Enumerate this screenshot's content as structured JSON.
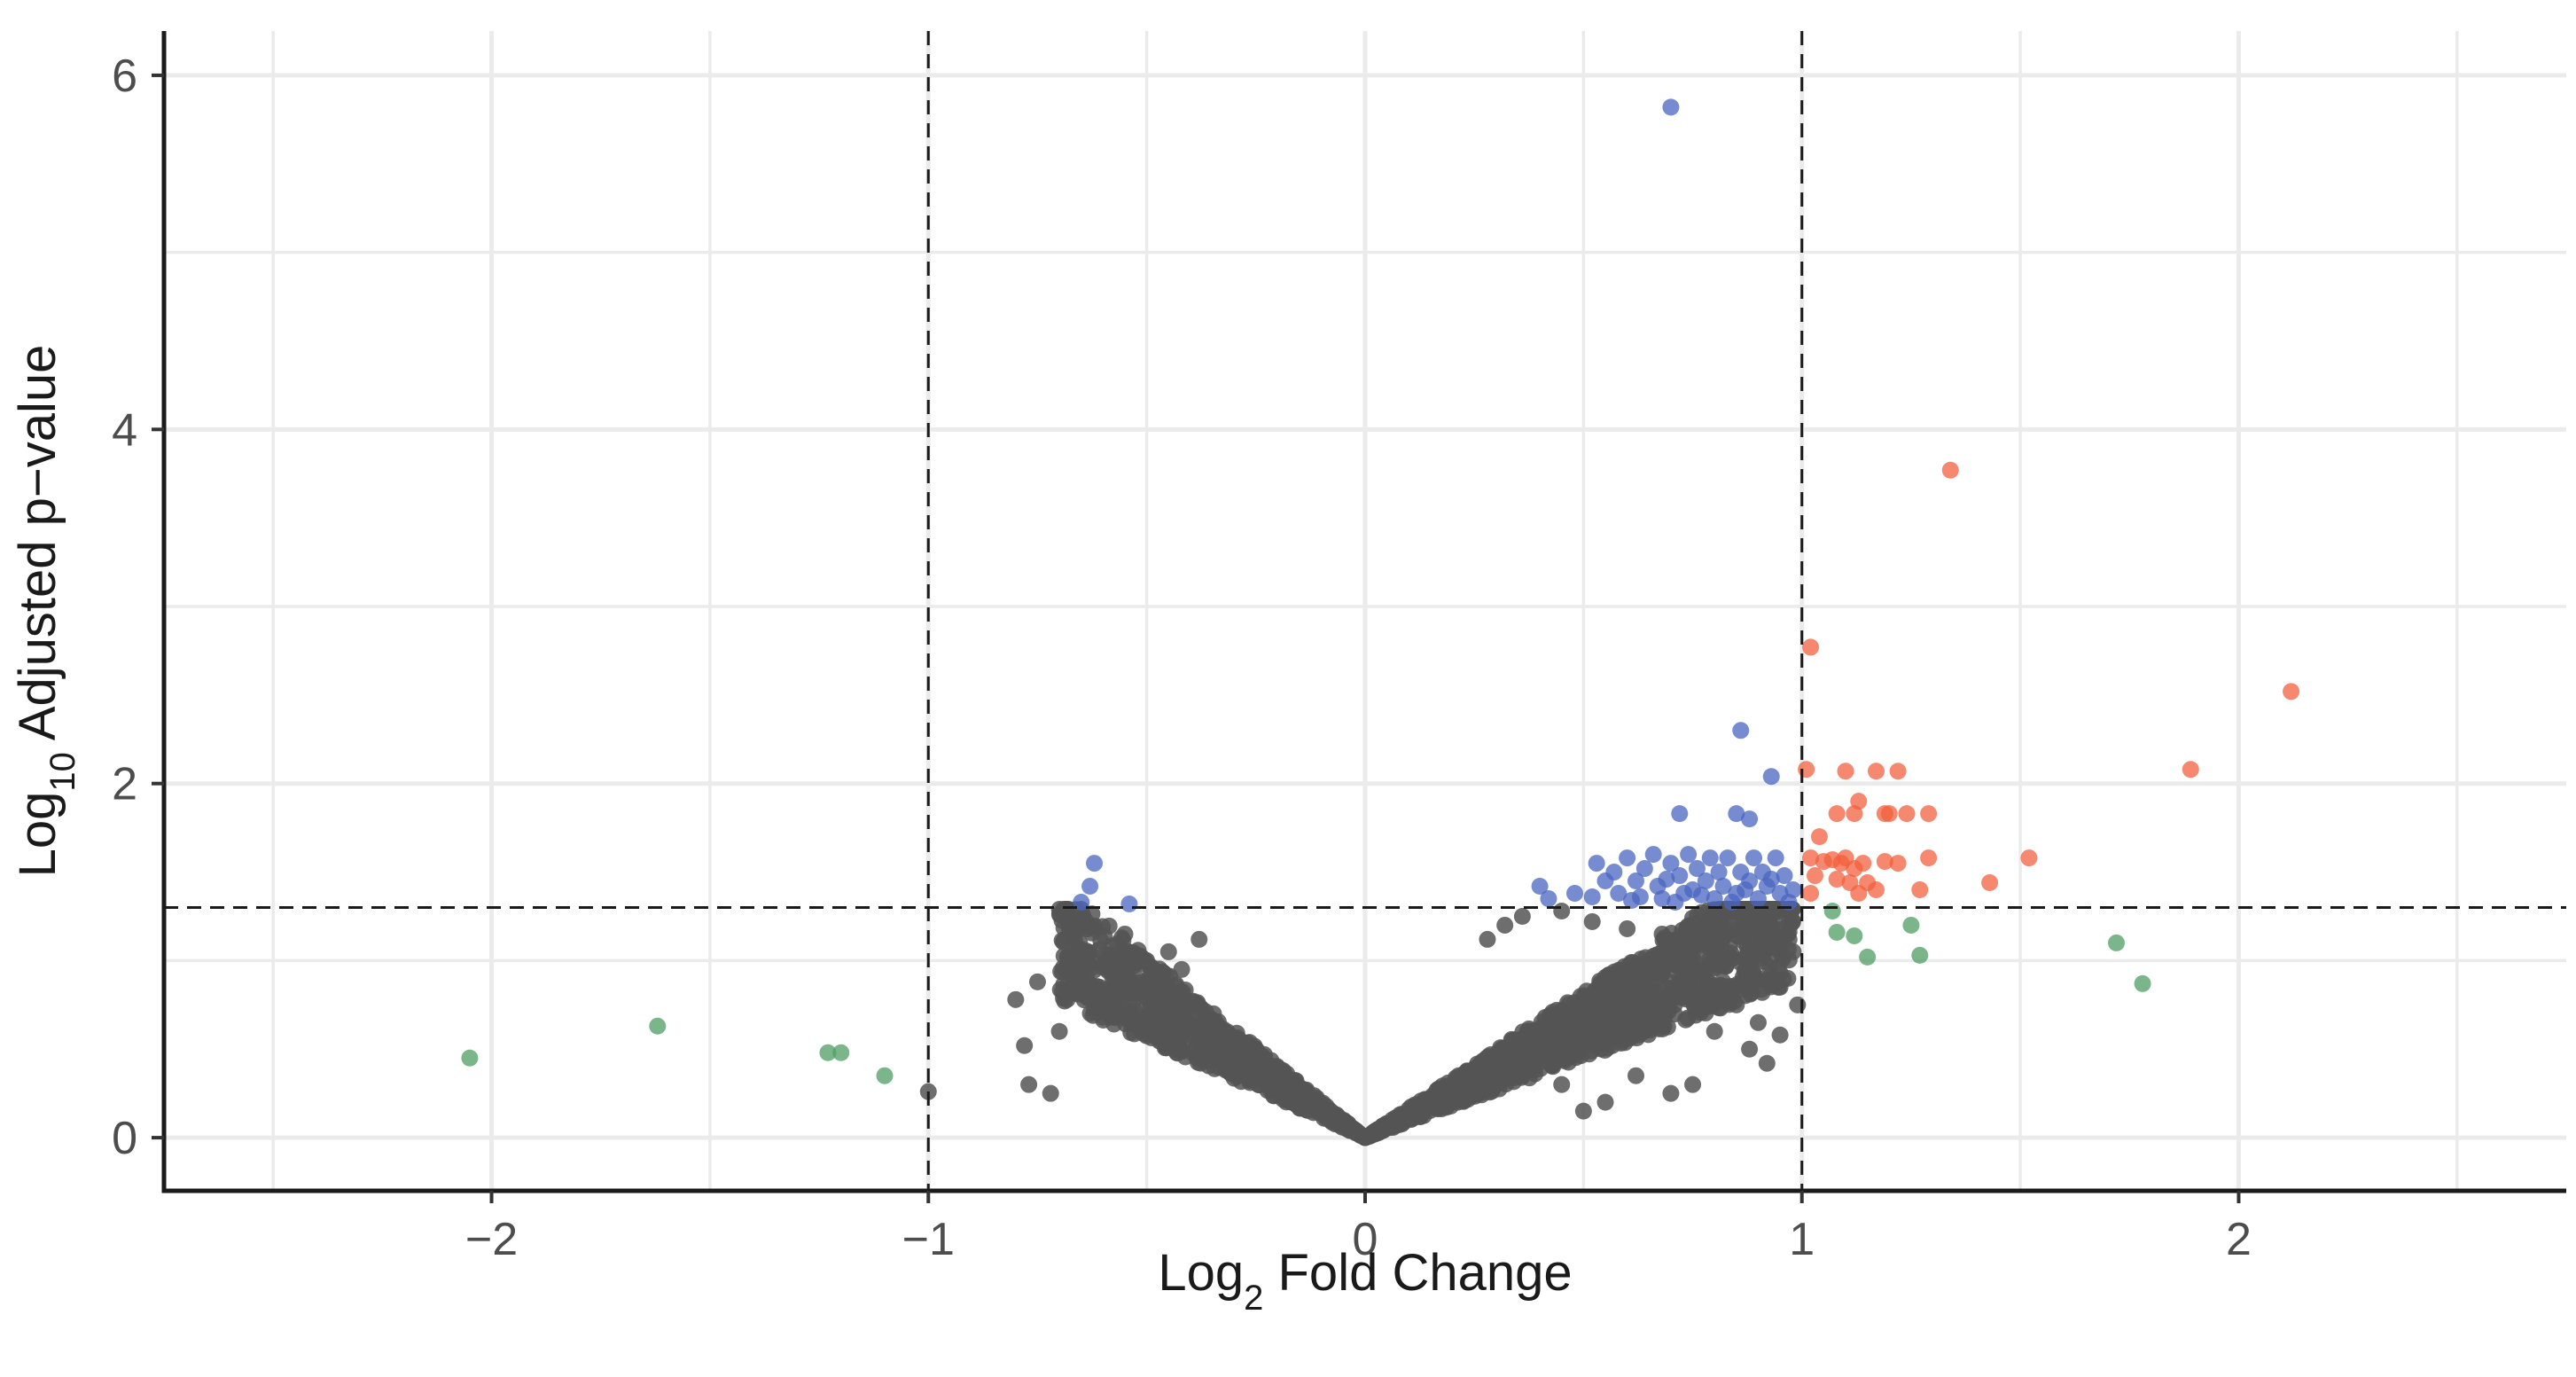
{
  "chart_data": {
    "type": "scatter",
    "title": "",
    "xlabel": {
      "prefix": "Log",
      "subscript": "2",
      "suffix": " Fold Change"
    },
    "ylabel": {
      "prefix": "Log",
      "subscript": "10",
      "suffix": " Adjusted p−value"
    },
    "xlim": [
      -2.75,
      2.75
    ],
    "ylim": [
      -0.3,
      6.25
    ],
    "x_ticks": [
      -2,
      -1,
      0,
      1,
      2
    ],
    "x_tick_labels": [
      "−2",
      "−1",
      "0",
      "1",
      "2"
    ],
    "y_ticks": [
      0,
      2,
      4,
      6
    ],
    "y_tick_labels": [
      "0",
      "2",
      "4",
      "6"
    ],
    "grid": true,
    "legend": "none",
    "threshold_lines": {
      "vertical": [
        -1,
        1
      ],
      "horizontal": [
        1.3
      ]
    },
    "colors": {
      "not_significant": "#555555",
      "significant_p": "#4a66c0",
      "significant_fc_and_p": "#f2603d",
      "fold_change_only": "#4f9e63",
      "threshold_line": "#1a1a1a",
      "grid": "#ebebeb"
    },
    "series": [
      {
        "key": "fold_change_only",
        "points": [
          [
            -2.05,
            0.45
          ],
          [
            -1.62,
            0.63
          ],
          [
            -1.23,
            0.48
          ],
          [
            -1.2,
            0.48
          ],
          [
            -1.1,
            0.35
          ],
          [
            1.08,
            1.16
          ],
          [
            1.12,
            1.14
          ],
          [
            1.07,
            1.28
          ],
          [
            1.15,
            1.02
          ],
          [
            1.25,
            1.2
          ],
          [
            1.27,
            1.03
          ],
          [
            1.72,
            1.1
          ],
          [
            1.78,
            0.87
          ]
        ]
      },
      {
        "key": "significant_p",
        "points": [
          [
            0.7,
            5.82
          ],
          [
            0.86,
            2.3
          ],
          [
            0.93,
            2.04
          ],
          [
            0.72,
            1.83
          ],
          [
            0.85,
            1.83
          ],
          [
            0.88,
            1.8
          ],
          [
            -0.62,
            1.55
          ],
          [
            -0.63,
            1.42
          ],
          [
            -0.65,
            1.33
          ],
          [
            -0.54,
            1.32
          ],
          [
            0.4,
            1.42
          ],
          [
            0.42,
            1.35
          ],
          [
            0.48,
            1.38
          ],
          [
            0.52,
            1.36
          ],
          [
            0.53,
            1.55
          ],
          [
            0.55,
            1.45
          ],
          [
            0.58,
            1.38
          ],
          [
            0.6,
            1.58
          ],
          [
            0.62,
            1.45
          ],
          [
            0.64,
            1.52
          ],
          [
            0.66,
            1.6
          ],
          [
            0.67,
            1.42
          ],
          [
            0.68,
            1.35
          ],
          [
            0.7,
            1.55
          ],
          [
            0.72,
            1.48
          ],
          [
            0.74,
            1.6
          ],
          [
            0.75,
            1.4
          ],
          [
            0.76,
            1.52
          ],
          [
            0.78,
            1.45
          ],
          [
            0.79,
            1.58
          ],
          [
            0.8,
            1.35
          ],
          [
            0.81,
            1.5
          ],
          [
            0.82,
            1.42
          ],
          [
            0.83,
            1.58
          ],
          [
            0.85,
            1.38
          ],
          [
            0.86,
            1.5
          ],
          [
            0.88,
            1.45
          ],
          [
            0.89,
            1.58
          ],
          [
            0.9,
            1.35
          ],
          [
            0.91,
            1.5
          ],
          [
            0.92,
            1.42
          ],
          [
            0.94,
            1.58
          ],
          [
            0.95,
            1.38
          ],
          [
            0.96,
            1.48
          ],
          [
            0.97,
            1.33
          ],
          [
            0.98,
            1.4
          ],
          [
            0.63,
            1.36
          ],
          [
            0.71,
            1.33
          ],
          [
            0.77,
            1.37
          ],
          [
            0.84,
            1.33
          ],
          [
            0.57,
            1.5
          ],
          [
            0.61,
            1.34
          ],
          [
            0.69,
            1.46
          ],
          [
            0.73,
            1.38
          ],
          [
            0.87,
            1.4
          ],
          [
            0.93,
            1.46
          ]
        ]
      },
      {
        "key": "significant_fc_and_p",
        "points": [
          [
            1.34,
            3.77
          ],
          [
            2.12,
            2.52
          ],
          [
            1.02,
            2.77
          ],
          [
            1.89,
            2.08
          ],
          [
            1.01,
            2.08
          ],
          [
            1.1,
            2.07
          ],
          [
            1.17,
            2.07
          ],
          [
            1.22,
            2.07
          ],
          [
            1.13,
            1.9
          ],
          [
            1.08,
            1.83
          ],
          [
            1.12,
            1.83
          ],
          [
            1.19,
            1.83
          ],
          [
            1.2,
            1.83
          ],
          [
            1.24,
            1.83
          ],
          [
            1.29,
            1.83
          ],
          [
            1.04,
            1.7
          ],
          [
            1.02,
            1.58
          ],
          [
            1.05,
            1.56
          ],
          [
            1.07,
            1.57
          ],
          [
            1.09,
            1.55
          ],
          [
            1.1,
            1.58
          ],
          [
            1.12,
            1.52
          ],
          [
            1.14,
            1.55
          ],
          [
            1.19,
            1.56
          ],
          [
            1.22,
            1.55
          ],
          [
            1.29,
            1.58
          ],
          [
            1.52,
            1.58
          ],
          [
            1.03,
            1.48
          ],
          [
            1.08,
            1.46
          ],
          [
            1.11,
            1.44
          ],
          [
            1.15,
            1.44
          ],
          [
            1.17,
            1.4
          ],
          [
            1.13,
            1.38
          ],
          [
            1.27,
            1.4
          ],
          [
            1.43,
            1.44
          ],
          [
            1.02,
            1.38
          ]
        ]
      }
    ],
    "not_significant_cloud": {
      "count": 2000,
      "x_range": [
        -1.0,
        1.0
      ],
      "y_max": 1.29,
      "shape": "volcano",
      "outliers": [
        [
          -1.0,
          0.26
        ],
        [
          -0.8,
          0.78
        ],
        [
          -0.78,
          0.52
        ],
        [
          -0.77,
          0.3
        ],
        [
          -0.75,
          0.88
        ],
        [
          -0.72,
          0.25
        ],
        [
          -0.7,
          0.6
        ],
        [
          -0.68,
          1.02
        ],
        [
          -0.66,
          0.92
        ],
        [
          -0.62,
          0.72
        ],
        [
          -0.6,
          0.98
        ],
        [
          -0.58,
          0.68
        ],
        [
          -0.55,
          1.15
        ],
        [
          -0.5,
          1.0
        ],
        [
          -0.48,
          0.88
        ],
        [
          -0.45,
          1.05
        ],
        [
          -0.42,
          0.95
        ],
        [
          -0.38,
          1.12
        ],
        [
          0.28,
          1.12
        ],
        [
          0.32,
          1.2
        ],
        [
          0.36,
          1.25
        ],
        [
          0.45,
          1.28
        ],
        [
          0.52,
          1.22
        ],
        [
          0.6,
          1.18
        ],
        [
          0.68,
          1.15
        ],
        [
          0.75,
          1.05
        ],
        [
          0.82,
          0.98
        ],
        [
          0.86,
          0.84
        ],
        [
          0.9,
          0.9
        ],
        [
          0.9,
          0.65
        ],
        [
          0.95,
          0.85
        ],
        [
          0.95,
          0.58
        ],
        [
          0.92,
          0.42
        ],
        [
          0.88,
          0.5
        ],
        [
          0.85,
          0.75
        ],
        [
          0.8,
          0.6
        ],
        [
          0.75,
          0.3
        ],
        [
          0.7,
          0.25
        ],
        [
          0.62,
          0.35
        ],
        [
          0.55,
          0.2
        ],
        [
          0.5,
          0.15
        ],
        [
          0.45,
          0.3
        ],
        [
          0.98,
          1.05
        ],
        [
          0.99,
          0.75
        ]
      ]
    }
  }
}
